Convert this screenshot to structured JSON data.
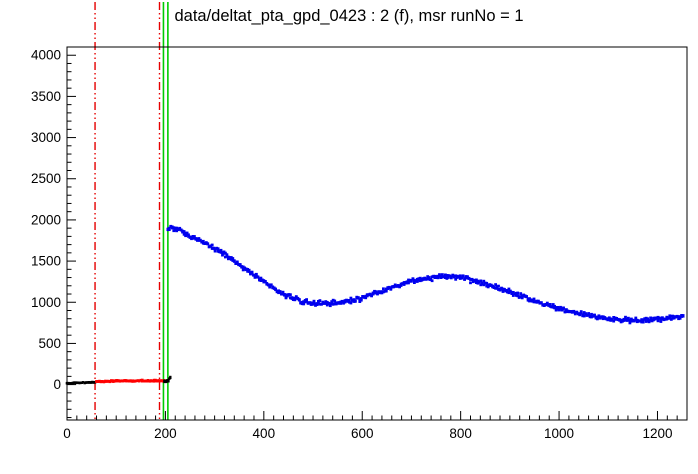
{
  "chart_data": {
    "type": "scatter",
    "title": "data/deltat_pta_gpd_0423 : 2 (f), msr runNo = 1",
    "xlabel": "",
    "ylabel": "",
    "xlim": [
      0,
      1260
    ],
    "ylim": [
      -430,
      4100
    ],
    "grid": false,
    "legend": "none",
    "x_ticks": [
      0,
      200,
      400,
      600,
      800,
      1000,
      1200
    ],
    "y_ticks": [
      0,
      500,
      1000,
      1500,
      2000,
      2500,
      3000,
      3500,
      4000
    ],
    "x_minor_step": 20,
    "y_minor_step": 100,
    "vlines": [
      {
        "name": "red-dashdot-1",
        "x": 57,
        "color": "#e60000",
        "width": 1.4,
        "dash": "8,3,1.5,3,1.5,3"
      },
      {
        "name": "red-dashdot-2",
        "x": 188,
        "color": "#e60000",
        "width": 1.4,
        "dash": "8,3,1.5,3,1.5,3"
      },
      {
        "name": "t0-green-1",
        "x": 196,
        "color": "#00cc00",
        "width": 1.6,
        "dash": ""
      },
      {
        "name": "t0-green-2",
        "x": 205,
        "color": "#00cc00",
        "width": 1.6,
        "dash": ""
      }
    ],
    "series": [
      {
        "name": "pre-window-black",
        "color": "#000000",
        "marker": "square",
        "size": 2.4,
        "step": 3,
        "passes": 2,
        "jitter": 9,
        "points": [
          [
            0,
            18
          ],
          [
            20,
            22
          ],
          [
            40,
            25
          ],
          [
            57,
            28
          ]
        ]
      },
      {
        "name": "background-window-red",
        "color": "#ff0000",
        "marker": "square",
        "size": 2.6,
        "step": 3,
        "passes": 2,
        "jitter": 13,
        "points": [
          [
            60,
            38
          ],
          [
            100,
            44
          ],
          [
            150,
            46
          ],
          [
            198,
            50
          ]
        ]
      },
      {
        "name": "t0-region-black",
        "color": "#000000",
        "marker": "square",
        "size": 2.4,
        "step": 2,
        "passes": 2,
        "jitter": 18,
        "points": [
          [
            198,
            35
          ],
          [
            206,
            50
          ],
          [
            211,
            95
          ]
        ]
      },
      {
        "name": "musr-data-blue",
        "color": "#0000ee",
        "marker": "square",
        "size": 2.8,
        "step": 3,
        "passes": 2,
        "jitter": 42,
        "points": [
          [
            205,
            1880
          ],
          [
            212,
            1930
          ],
          [
            220,
            1870
          ],
          [
            228,
            1900
          ],
          [
            236,
            1840
          ],
          [
            244,
            1820
          ],
          [
            252,
            1790
          ],
          [
            260,
            1780
          ],
          [
            270,
            1760
          ],
          [
            280,
            1720
          ],
          [
            290,
            1690
          ],
          [
            300,
            1650
          ],
          [
            310,
            1620
          ],
          [
            320,
            1580
          ],
          [
            330,
            1540
          ],
          [
            340,
            1500
          ],
          [
            350,
            1460
          ],
          [
            360,
            1420
          ],
          [
            370,
            1380
          ],
          [
            380,
            1340
          ],
          [
            390,
            1300
          ],
          [
            400,
            1260
          ],
          [
            410,
            1210
          ],
          [
            420,
            1170
          ],
          [
            430,
            1130
          ],
          [
            440,
            1100
          ],
          [
            450,
            1070
          ],
          [
            460,
            1050
          ],
          [
            470,
            1030
          ],
          [
            480,
            1010
          ],
          [
            490,
            1000
          ],
          [
            500,
            995
          ],
          [
            520,
            985
          ],
          [
            540,
            990
          ],
          [
            560,
            1000
          ],
          [
            580,
            1020
          ],
          [
            600,
            1050
          ],
          [
            620,
            1090
          ],
          [
            640,
            1130
          ],
          [
            660,
            1180
          ],
          [
            680,
            1220
          ],
          [
            700,
            1255
          ],
          [
            720,
            1280
          ],
          [
            740,
            1300
          ],
          [
            760,
            1310
          ],
          [
            780,
            1305
          ],
          [
            800,
            1295
          ],
          [
            820,
            1270
          ],
          [
            840,
            1240
          ],
          [
            860,
            1205
          ],
          [
            880,
            1165
          ],
          [
            900,
            1125
          ],
          [
            920,
            1080
          ],
          [
            940,
            1040
          ],
          [
            960,
            1000
          ],
          [
            980,
            960
          ],
          [
            1000,
            925
          ],
          [
            1020,
            895
          ],
          [
            1040,
            865
          ],
          [
            1060,
            840
          ],
          [
            1080,
            818
          ],
          [
            1100,
            800
          ],
          [
            1120,
            788
          ],
          [
            1140,
            778
          ],
          [
            1160,
            775
          ],
          [
            1180,
            782
          ],
          [
            1200,
            795
          ],
          [
            1220,
            810
          ],
          [
            1240,
            822
          ],
          [
            1252,
            828
          ]
        ]
      }
    ]
  }
}
